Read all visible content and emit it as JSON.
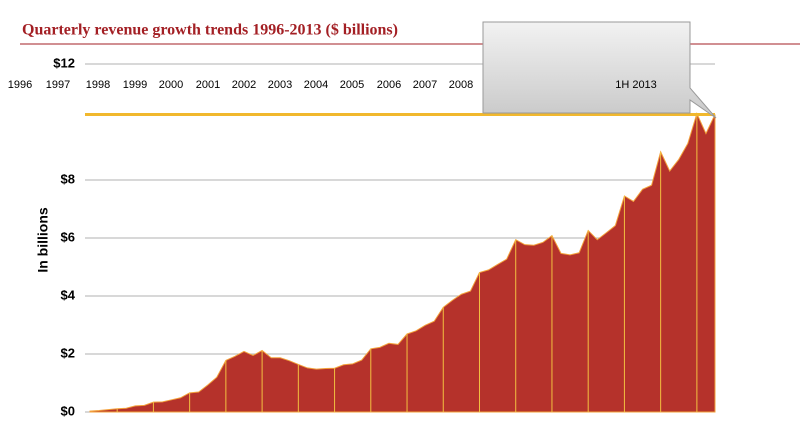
{
  "chart_data": {
    "type": "area",
    "title": "Quarterly revenue growth trends 1996-2013 ($ billions)",
    "y_label": "In billions",
    "x_labels": [
      "1996",
      "1997",
      "1998",
      "1999",
      "2000",
      "2001",
      "2002",
      "2003",
      "2004",
      "2005",
      "2006",
      "2007",
      "2008"
    ],
    "annotation": "1H 2013",
    "categories": [
      null,
      null,
      null,
      null,
      null,
      null,
      null,
      null,
      null,
      null,
      null,
      null,
      null,
      null,
      null,
      null,
      null,
      null,
      null,
      null,
      null,
      null,
      null,
      null,
      null,
      null,
      null,
      null,
      null,
      null,
      null,
      null,
      null,
      null,
      null,
      null,
      null,
      null,
      null,
      null,
      null,
      null,
      null,
      null,
      null,
      null,
      null,
      null,
      null,
      null,
      null,
      null,
      null,
      null,
      null,
      null,
      null,
      null,
      null,
      null,
      null,
      null,
      null,
      null,
      null,
      null,
      null,
      null,
      null,
      null
    ],
    "series": [
      {
        "name": null,
        "color": "#b5322b",
        "values": [
          0.03,
          0.05,
          0.08,
          0.11,
          0.13,
          0.21,
          0.23,
          0.34,
          0.35,
          0.42,
          0.49,
          0.66,
          0.69,
          0.93,
          1.2,
          1.78,
          1.92,
          2.09,
          1.95,
          2.12,
          1.87,
          1.87,
          1.77,
          1.64,
          1.52,
          1.48,
          1.5,
          1.51,
          1.63,
          1.66,
          1.79,
          2.18,
          2.23,
          2.37,
          2.33,
          2.69,
          2.8,
          2.99,
          3.13,
          3.61,
          3.85,
          4.06,
          4.17,
          4.81,
          4.9,
          5.09,
          5.27,
          5.94,
          5.77,
          5.75,
          5.85,
          6.08,
          5.47,
          5.42,
          5.49,
          6.26,
          5.94,
          6.18,
          6.43,
          7.45,
          7.26,
          7.68,
          7.82,
          8.97,
          8.31,
          8.71,
          9.26,
          10.29,
          9.6,
          10.26
        ]
      }
    ],
    "ylim": [
      0,
      12
    ],
    "yticks": [
      {
        "value": 0,
        "label": "$0"
      },
      {
        "value": 2,
        "label": "$2"
      },
      {
        "value": 4,
        "label": "$4"
      },
      {
        "value": 6,
        "label": "$6"
      },
      {
        "value": 8,
        "label": "$8"
      },
      {
        "value": 12,
        "label": "$12"
      }
    ],
    "grid": true
  }
}
